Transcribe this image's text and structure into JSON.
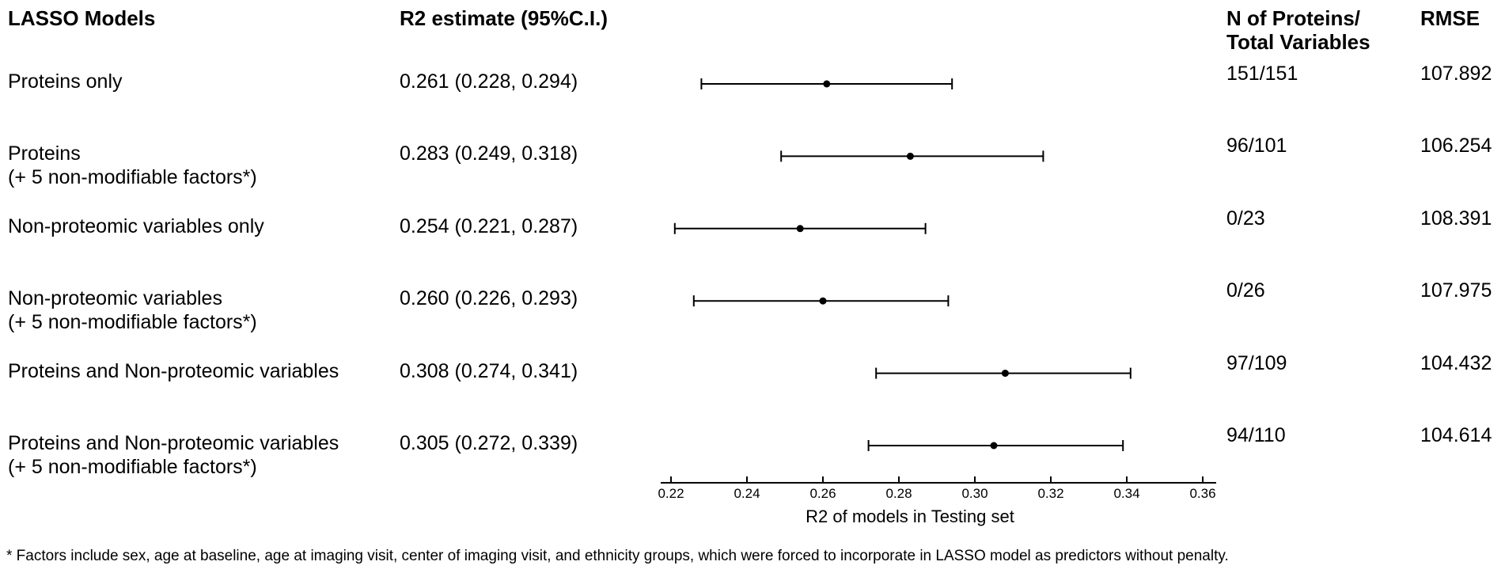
{
  "figure": {
    "models_header": "LASSO Models",
    "estimate_header": "R2 estimate (95%C.I.)",
    "n_header_line1": "N of Proteins/",
    "n_header_line2": "Total Variables",
    "rmse_header": "RMSE",
    "footnote": "* Factors include sex, age at baseline, age at imaging visit, center of imaging visit, and ethnicity groups, which were forced to incorporate in LASSO model as predictors without penalty."
  },
  "axis": {
    "label": "R2 of models in Testing set",
    "tick_labels": [
      "0.22",
      "0.24",
      "0.26",
      "0.28",
      "0.30",
      "0.32",
      "0.34",
      "0.36"
    ],
    "tick_values": [
      0.22,
      0.24,
      0.26,
      0.28,
      0.3,
      0.32,
      0.34,
      0.36
    ],
    "min": 0.22,
    "max": 0.36
  },
  "colors": {
    "text": "#000000",
    "background": "#ffffff",
    "line": "#000000",
    "marker": "#000000"
  },
  "chart_data": {
    "type": "forest",
    "title": "",
    "xlabel": "R2 of models in Testing set",
    "xlim": [
      0.22,
      0.36
    ],
    "grid": false,
    "rows": [
      {
        "label_line1": "Proteins only",
        "label_line2": "",
        "estimate_text": "0.261 (0.228, 0.294)",
        "estimate": 0.261,
        "ci_low": 0.228,
        "ci_high": 0.294,
        "n_proteins": "151/151",
        "rmse": "107.892"
      },
      {
        "label_line1": "Proteins",
        "label_line2": "(+ 5 non-modifiable factors*)",
        "estimate_text": "0.283 (0.249, 0.318)",
        "estimate": 0.283,
        "ci_low": 0.249,
        "ci_high": 0.318,
        "n_proteins": "96/101",
        "rmse": "106.254"
      },
      {
        "label_line1": "Non-proteomic variables only",
        "label_line2": "",
        "estimate_text": "0.254 (0.221, 0.287)",
        "estimate": 0.254,
        "ci_low": 0.221,
        "ci_high": 0.287,
        "n_proteins": "0/23",
        "rmse": "108.391"
      },
      {
        "label_line1": "Non-proteomic variables",
        "label_line2": "(+ 5 non-modifiable factors*)",
        "estimate_text": "0.260 (0.226, 0.293)",
        "estimate": 0.26,
        "ci_low": 0.226,
        "ci_high": 0.293,
        "n_proteins": "0/26",
        "rmse": "107.975"
      },
      {
        "label_line1": "Proteins and Non-proteomic variables",
        "label_line2": "",
        "estimate_text": "0.308 (0.274, 0.341)",
        "estimate": 0.308,
        "ci_low": 0.274,
        "ci_high": 0.341,
        "n_proteins": "97/109",
        "rmse": "104.432"
      },
      {
        "label_line1": "Proteins and Non-proteomic variables",
        "label_line2": "(+ 5 non-modifiable factors*)",
        "estimate_text": "0.305 (0.272, 0.339)",
        "estimate": 0.305,
        "ci_low": 0.272,
        "ci_high": 0.339,
        "n_proteins": "94/110",
        "rmse": "104.614"
      }
    ]
  }
}
